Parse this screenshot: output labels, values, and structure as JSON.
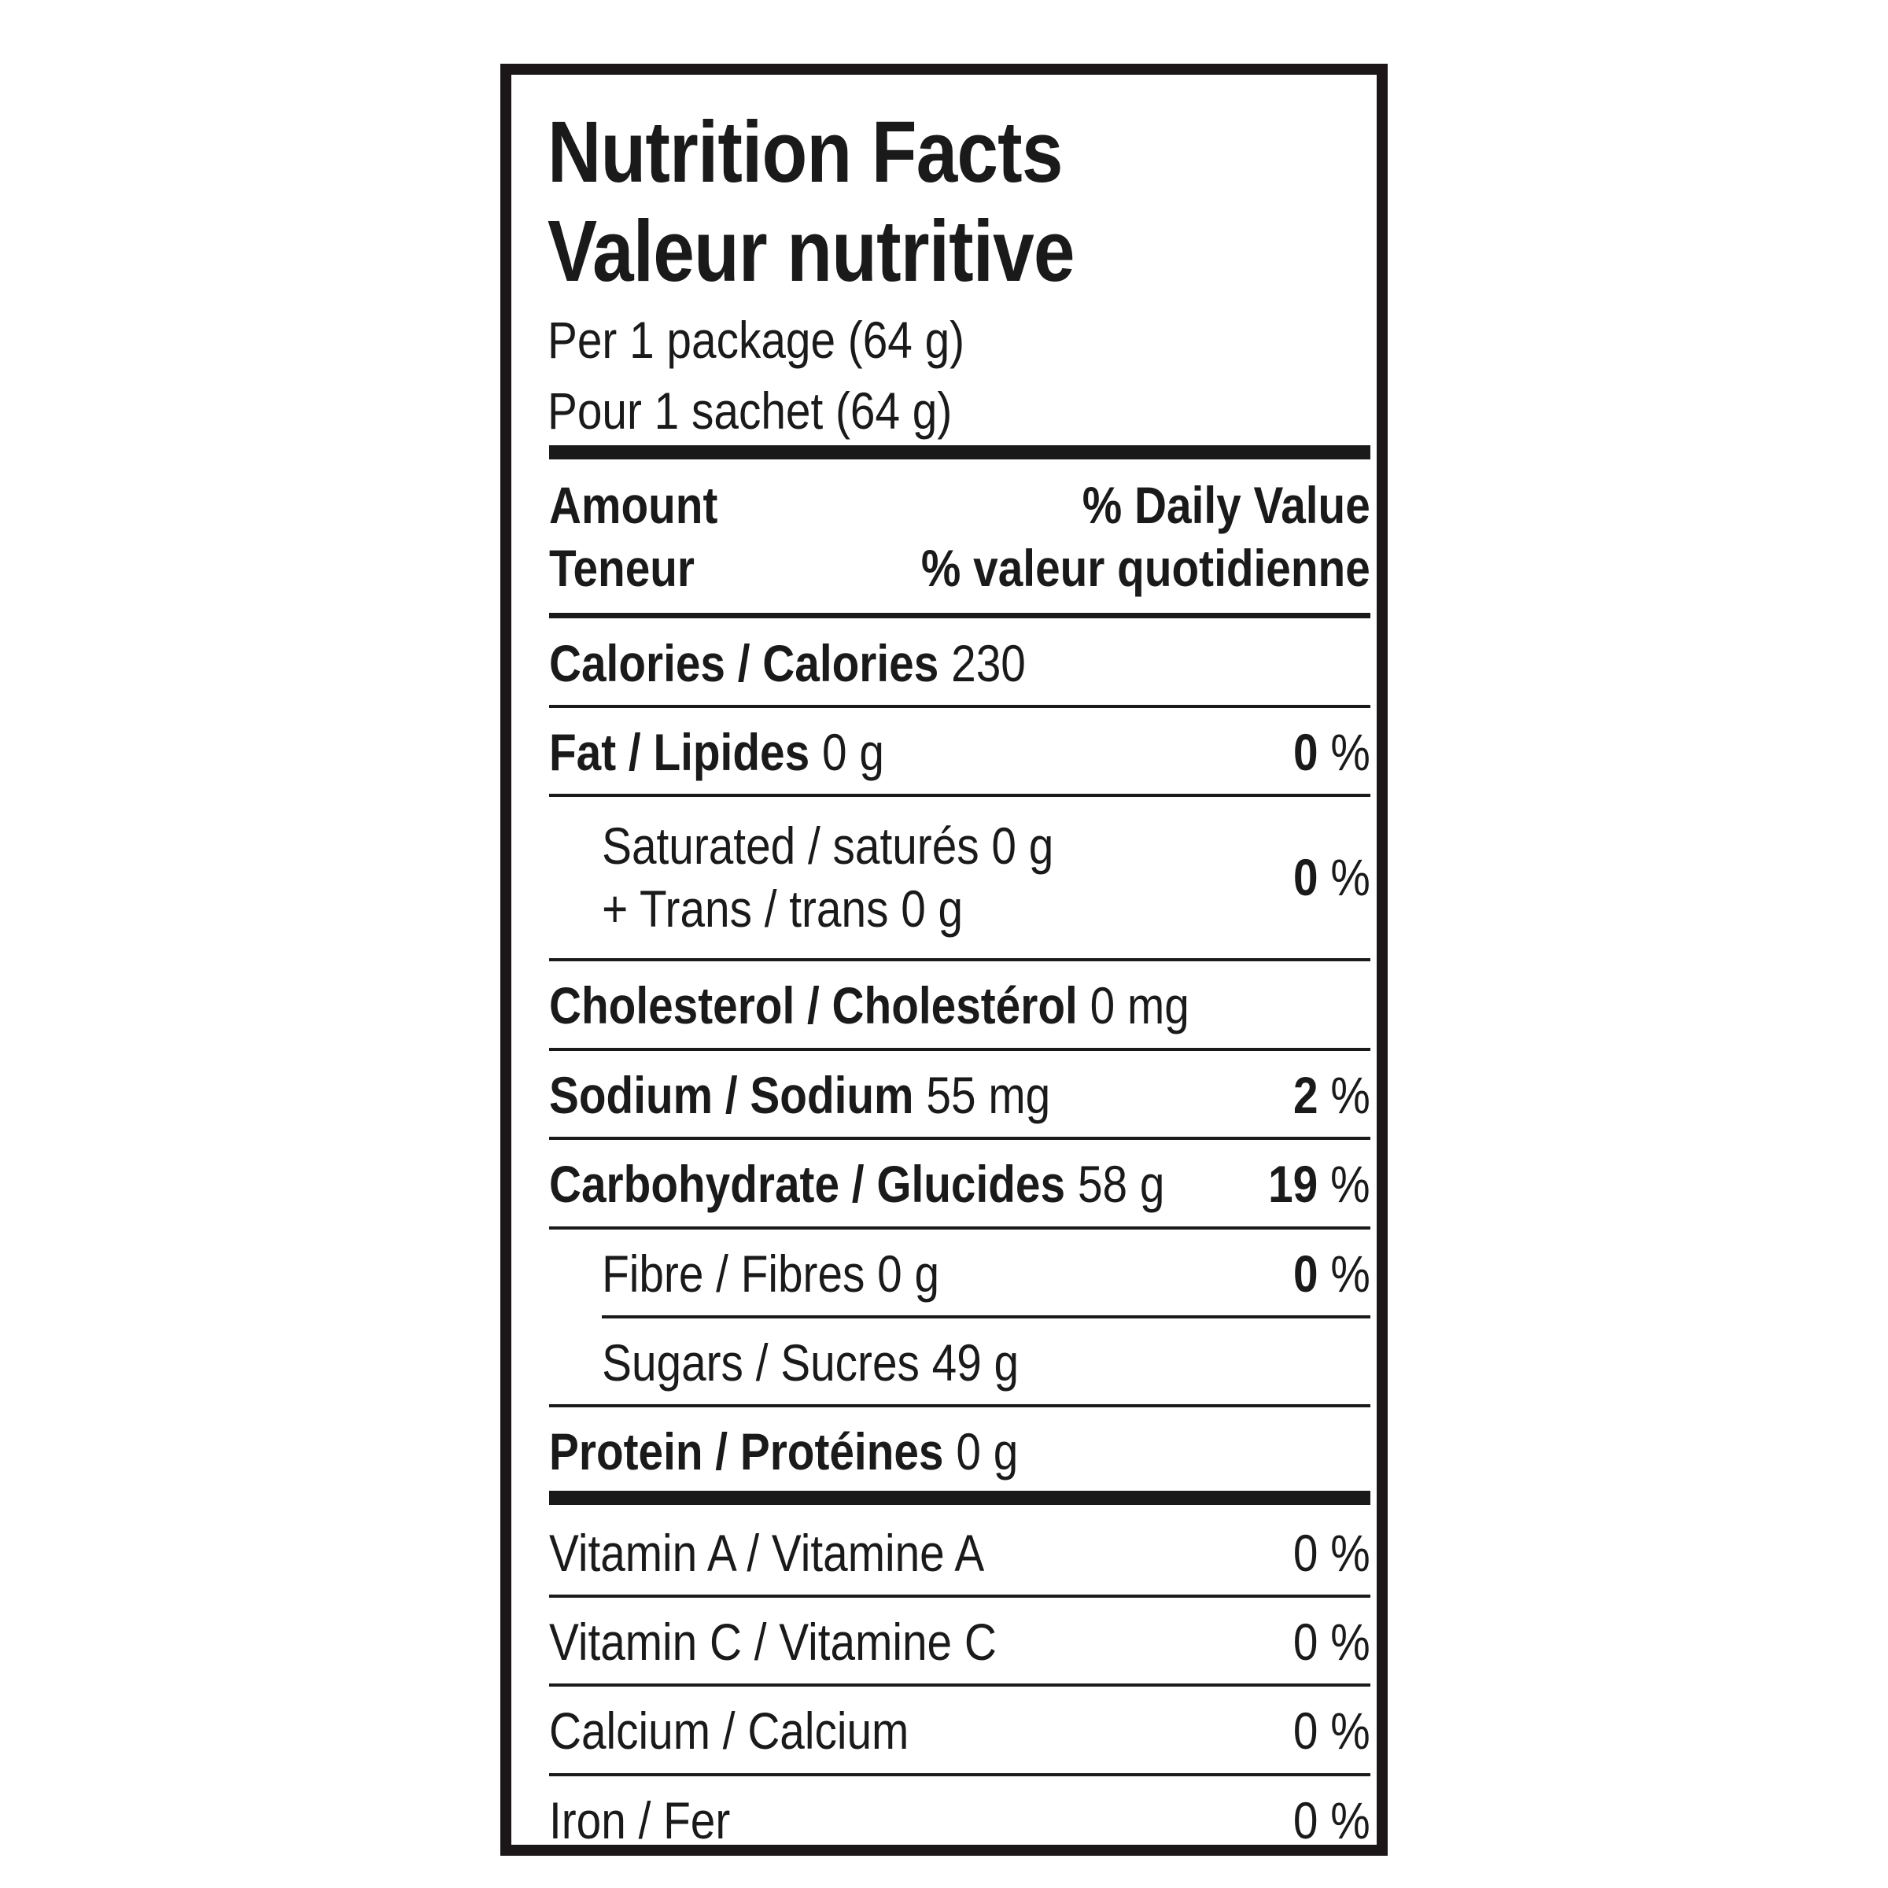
{
  "header": {
    "title_en": "Nutrition Facts",
    "title_fr": "Valeur nutritive",
    "serving_en": "Per 1 package (64 g)",
    "serving_fr": "Pour 1 sachet (64 g)"
  },
  "columns": {
    "amount_en": "Amount",
    "amount_fr": "Teneur",
    "dv_en": "% Daily Value",
    "dv_fr": "% valeur quotidienne"
  },
  "nutrients": {
    "calories": {
      "label": "Calories / Calories",
      "amount": "230",
      "dv": ""
    },
    "fat": {
      "label": "Fat / Lipides",
      "amount": "0 g",
      "dv_num": "0",
      "dv_unit": "%"
    },
    "saturated": {
      "line1": "Saturated / saturés 0 g",
      "line2": "+ Trans / trans 0 g",
      "dv_num": "0",
      "dv_unit": "%"
    },
    "cholesterol": {
      "label": "Cholesterol / Cholestérol",
      "amount": "0 mg"
    },
    "sodium": {
      "label": "Sodium / Sodium",
      "amount": "55 mg",
      "dv_num": "2",
      "dv_unit": "%"
    },
    "carbohydrate": {
      "label": "Carbohydrate / Glucides",
      "amount": "58 g",
      "dv_num": "19",
      "dv_unit": "%"
    },
    "fibre": {
      "label": "Fibre / Fibres 0 g",
      "dv_num": "0",
      "dv_unit": "%"
    },
    "sugars": {
      "label": "Sugars / Sucres 49 g"
    },
    "protein": {
      "label": "Protein / Protéines",
      "amount": "0 g"
    }
  },
  "vitamins": {
    "vitamin_a": {
      "label": "Vitamin A / Vitamine A",
      "dv": "0 %"
    },
    "vitamin_c": {
      "label": "Vitamin C / Vitamine C",
      "dv": "0 %"
    },
    "calcium": {
      "label": "Calcium / Calcium",
      "dv": "0 %"
    },
    "iron": {
      "label": "Iron / Fer",
      "dv": "0 %"
    }
  }
}
